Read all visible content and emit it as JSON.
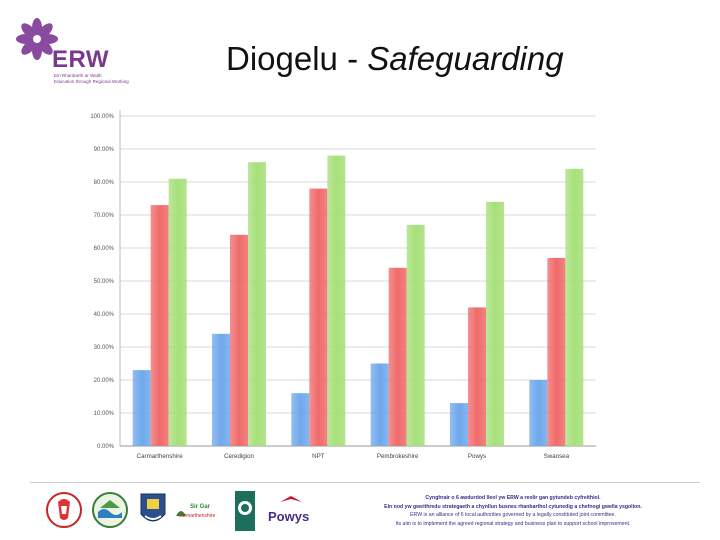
{
  "header": {
    "title_cy": "Diogelu - ",
    "title_en": "Safeguarding"
  },
  "logo": {
    "name": "ERW",
    "sub_line1": "Ein Rhanbarth ar Waith",
    "sub_line2": "Education through Regional Working",
    "color": "#7a3a8c"
  },
  "chart_data": {
    "type": "bar",
    "categories": [
      "Carmarthenshire",
      "Ceredigion",
      "NPT",
      "Pembrokeshire",
      "Powys",
      "Swansea"
    ],
    "series": [
      {
        "values": [
          23,
          34,
          16,
          25,
          13,
          20
        ],
        "color": "#6fa8ec"
      },
      {
        "values": [
          73,
          64,
          78,
          54,
          42,
          57
        ],
        "color": "#f06b6b"
      },
      {
        "values": [
          81,
          86,
          88,
          67,
          74,
          84
        ],
        "color": "#a7e07a"
      }
    ],
    "ylim": [
      0,
      100
    ],
    "yticks": [
      "0.00%",
      "10.00%",
      "20.00%",
      "30.00%",
      "40.00%",
      "50.00%",
      "60.00%",
      "70.00%",
      "80.00%",
      "90.00%",
      "100.00%"
    ],
    "grid": true
  },
  "footer": {
    "logos": [
      "Carmarthenshire logo",
      "NPT logo",
      "Pembrokeshire logo",
      "Sir Gar Carmarthenshire",
      "Swansea logo",
      "Powys"
    ],
    "powys_label": "Powys",
    "sirgar_label": "Sir Gar",
    "sirgar_sub": "Carmarthenshire",
    "line1": "Cynghrair o 6 awdurdod lleol yw ERW a reolir gan gytundeb cyfreithiol.",
    "line2": "Ein nod yw gweithredu strategaeth a chynllun busnes rhanbarthol cytunedig a chefnogi gwella ysgolion.",
    "line3": "ERW is an alliance of 6 local authorities governed by a legally constituted joint committee.",
    "line4": "Its aim is to implement the agreed regional strategy and business plan to support school improvement."
  }
}
